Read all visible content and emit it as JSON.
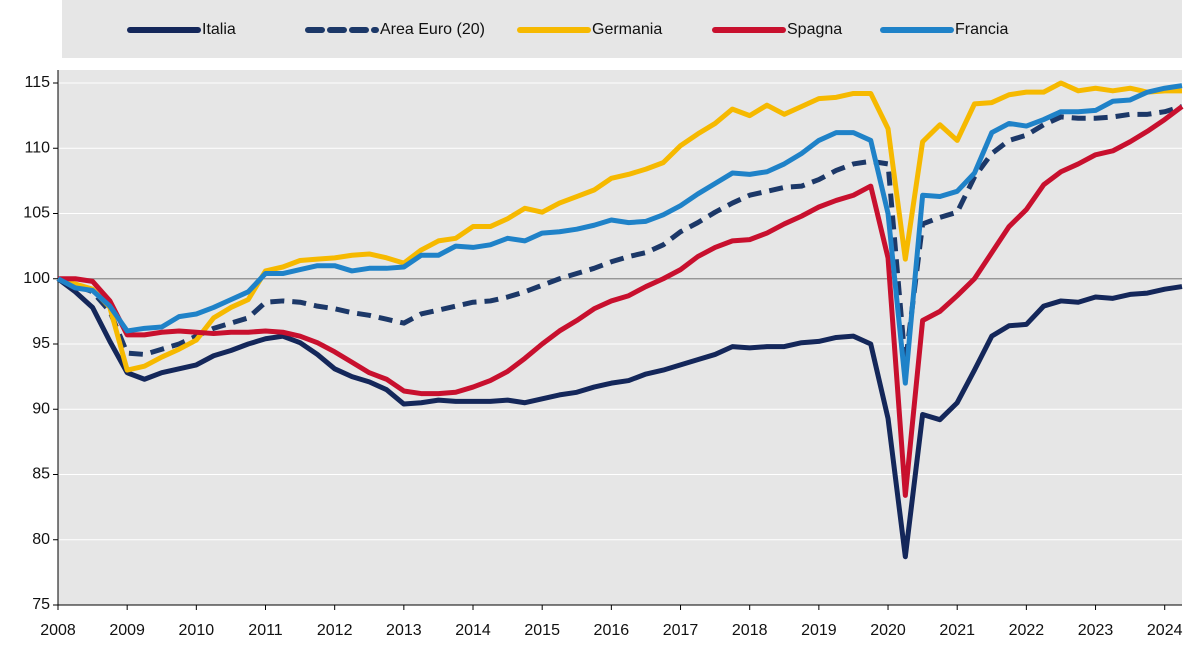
{
  "chart_data": {
    "type": "line",
    "x": [
      2008,
      2008.25,
      2008.5,
      2008.75,
      2009,
      2009.25,
      2009.5,
      2009.75,
      2010,
      2010.25,
      2010.5,
      2010.75,
      2011,
      2011.25,
      2011.5,
      2011.75,
      2012,
      2012.25,
      2012.5,
      2012.75,
      2013,
      2013.25,
      2013.5,
      2013.75,
      2014,
      2014.25,
      2014.5,
      2014.75,
      2015,
      2015.25,
      2015.5,
      2015.75,
      2016,
      2016.25,
      2016.5,
      2016.75,
      2017,
      2017.25,
      2017.5,
      2017.75,
      2018,
      2018.25,
      2018.5,
      2018.75,
      2019,
      2019.25,
      2019.5,
      2019.75,
      2020,
      2020.25,
      2020.5,
      2020.75,
      2021,
      2021.25,
      2021.5,
      2021.75,
      2022,
      2022.25,
      2022.5,
      2022.75,
      2023,
      2023.25,
      2023.5,
      2023.75,
      2024,
      2024.25
    ],
    "series": [
      {
        "name": "Italia",
        "color": "#14275a",
        "dash": false,
        "values": [
          100,
          99,
          97.8,
          95.2,
          92.8,
          92.3,
          92.8,
          93.1,
          93.4,
          94.1,
          94.5,
          95.0,
          95.4,
          95.6,
          95.1,
          94.2,
          93.1,
          92.5,
          92.1,
          91.5,
          90.4,
          90.5,
          90.7,
          90.6,
          90.6,
          90.6,
          90.7,
          90.5,
          90.8,
          91.1,
          91.3,
          91.7,
          92.0,
          92.2,
          92.7,
          93.0,
          93.4,
          93.8,
          94.2,
          94.8,
          94.7,
          94.8,
          94.8,
          95.1,
          95.2,
          95.5,
          95.6,
          95.0,
          89.3,
          78.7,
          89.6,
          89.2,
          90.5,
          93.0,
          95.6,
          96.4,
          96.5,
          97.9,
          98.3,
          98.2,
          98.6,
          98.5,
          98.8,
          98.9,
          99.2,
          99.4
        ]
      },
      {
        "name": "Area Euro (20)",
        "color": "#1c3868",
        "dash": true,
        "values": [
          100,
          99.5,
          99.0,
          97.5,
          94.3,
          94.2,
          94.6,
          95.0,
          95.6,
          96.2,
          96.6,
          97.0,
          98.2,
          98.3,
          98.2,
          97.9,
          97.7,
          97.4,
          97.2,
          96.9,
          96.6,
          97.3,
          97.6,
          97.9,
          98.2,
          98.3,
          98.6,
          99.0,
          99.5,
          100.0,
          100.4,
          100.8,
          101.3,
          101.7,
          102.0,
          102.6,
          103.6,
          104.3,
          105.1,
          105.8,
          106.4,
          106.7,
          107.0,
          107.1,
          107.6,
          108.3,
          108.8,
          109.0,
          108.8,
          93.5,
          104.2,
          104.7,
          105.1,
          107.8,
          109.6,
          110.6,
          111.0,
          111.8,
          112.4,
          112.3,
          112.3,
          112.4,
          112.6,
          112.6,
          112.8,
          113.2
        ]
      },
      {
        "name": "Germania",
        "color": "#f6b900",
        "dash": false,
        "values": [
          100,
          99.6,
          99.2,
          97.8,
          93.0,
          93.3,
          94.0,
          94.6,
          95.3,
          97.0,
          97.8,
          98.4,
          100.6,
          100.9,
          101.4,
          101.5,
          101.6,
          101.8,
          101.9,
          101.6,
          101.2,
          102.2,
          102.9,
          103.1,
          104.0,
          104.0,
          104.6,
          105.4,
          105.1,
          105.8,
          106.3,
          106.8,
          107.7,
          108.0,
          108.4,
          108.9,
          110.2,
          111.1,
          111.9,
          113.0,
          112.5,
          113.3,
          112.6,
          113.2,
          113.8,
          113.9,
          114.2,
          114.2,
          111.5,
          101.5,
          110.5,
          111.8,
          110.6,
          113.4,
          113.5,
          114.1,
          114.3,
          114.3,
          115.0,
          114.4,
          114.6,
          114.4,
          114.6,
          114.3,
          114.4,
          114.4
        ]
      },
      {
        "name": "Spagna",
        "color": "#c8102e",
        "dash": false,
        "values": [
          100,
          100,
          99.8,
          98.3,
          95.7,
          95.7,
          95.9,
          96.0,
          95.9,
          95.8,
          95.9,
          95.9,
          96.0,
          95.9,
          95.6,
          95.1,
          94.4,
          93.6,
          92.8,
          92.3,
          91.4,
          91.2,
          91.2,
          91.3,
          91.7,
          92.2,
          92.9,
          93.9,
          95.0,
          96.0,
          96.8,
          97.7,
          98.3,
          98.7,
          99.4,
          100.0,
          100.7,
          101.7,
          102.4,
          102.9,
          103.0,
          103.5,
          104.2,
          104.8,
          105.5,
          106.0,
          106.4,
          107.1,
          101.6,
          83.4,
          96.8,
          97.5,
          98.7,
          100.0,
          102.0,
          104.0,
          105.3,
          107.2,
          108.2,
          108.8,
          109.5,
          109.8,
          110.5,
          111.3,
          112.2,
          113.2
        ]
      },
      {
        "name": "Francia",
        "color": "#1f82c8",
        "dash": false,
        "values": [
          100,
          99.3,
          99.1,
          97.9,
          96.0,
          96.2,
          96.3,
          97.1,
          97.3,
          97.8,
          98.4,
          99.0,
          100.4,
          100.4,
          100.7,
          101.0,
          101.0,
          100.6,
          100.8,
          100.8,
          100.9,
          101.8,
          101.8,
          102.5,
          102.4,
          102.6,
          103.1,
          102.9,
          103.5,
          103.6,
          103.8,
          104.1,
          104.5,
          104.3,
          104.4,
          104.9,
          105.6,
          106.5,
          107.3,
          108.1,
          108.0,
          108.2,
          108.8,
          109.6,
          110.6,
          111.2,
          111.2,
          110.6,
          105.0,
          92.0,
          106.4,
          106.3,
          106.7,
          108.1,
          111.2,
          111.9,
          111.7,
          112.2,
          112.8,
          112.8,
          112.9,
          113.6,
          113.7,
          114.3,
          114.6,
          114.8
        ]
      }
    ],
    "xlim": [
      2008,
      2024.25
    ],
    "xticks": [
      2008,
      2009,
      2010,
      2011,
      2012,
      2013,
      2014,
      2015,
      2016,
      2017,
      2018,
      2019,
      2020,
      2021,
      2022,
      2023,
      2024
    ],
    "ylim": [
      75,
      115
    ],
    "yticks": [
      75,
      80,
      85,
      90,
      95,
      100,
      105,
      110,
      115
    ],
    "hline": 100,
    "grid": true,
    "legend": "top"
  }
}
